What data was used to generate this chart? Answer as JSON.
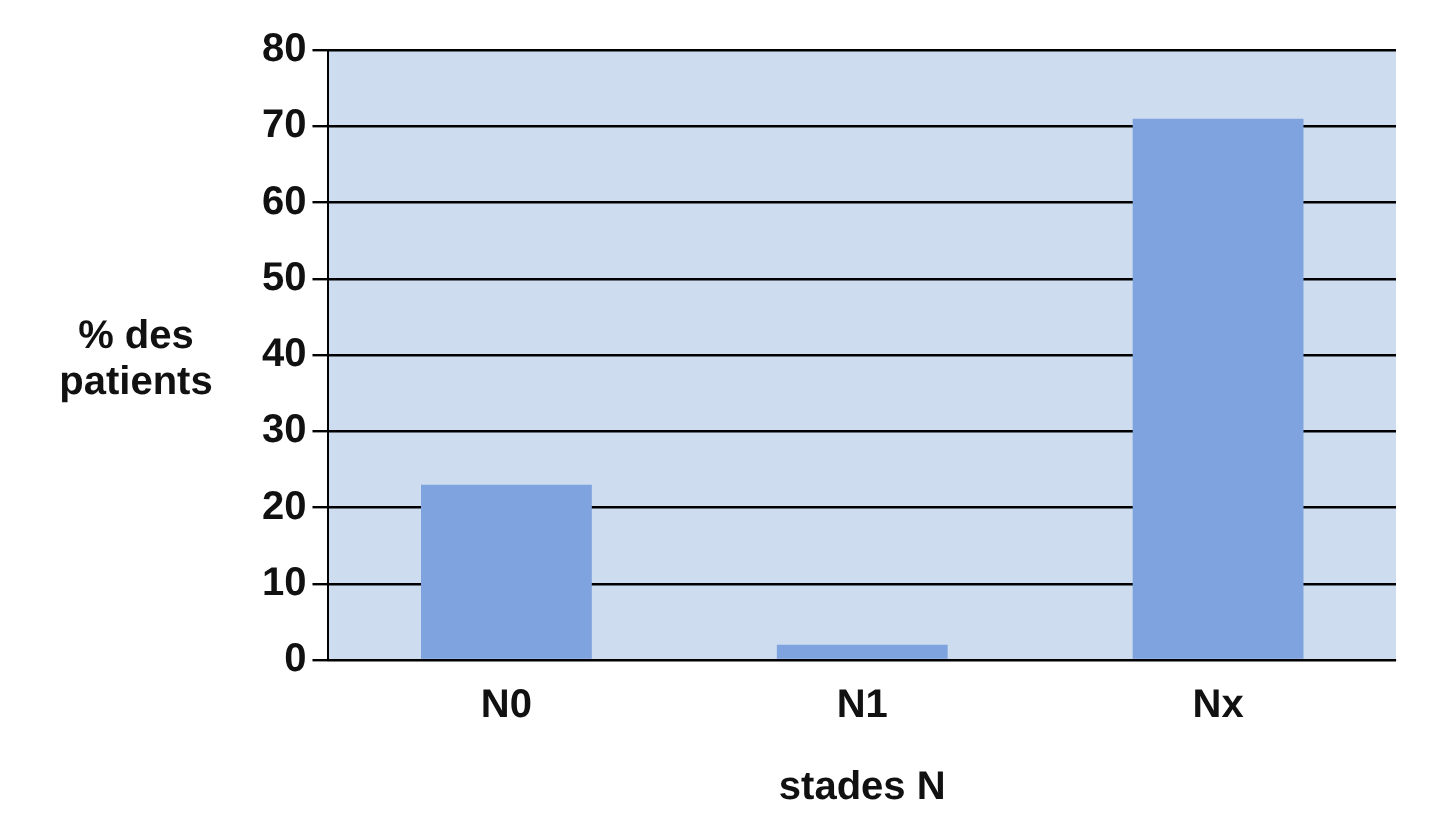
{
  "chart_data": {
    "type": "bar",
    "ylabel": "% des patients",
    "xlabel": "stades N",
    "categories": [
      "N0",
      "N1",
      "Nx"
    ],
    "values": [
      23,
      2,
      71
    ],
    "color": "#7ea3de",
    "ylim": [
      0,
      80
    ],
    "yticks": [
      0,
      10,
      20,
      30,
      40,
      50,
      60,
      70,
      80
    ],
    "grid": "y"
  }
}
